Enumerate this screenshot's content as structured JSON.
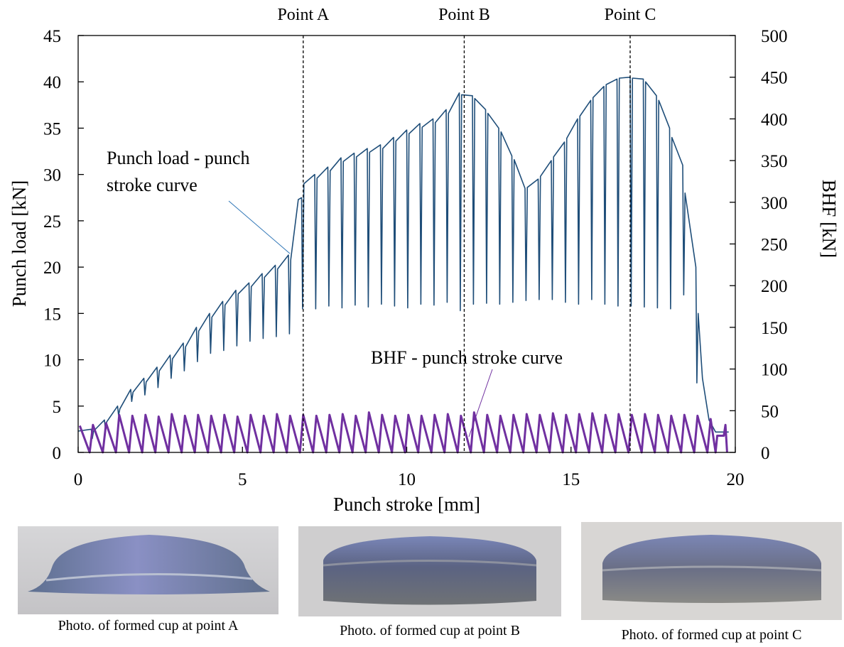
{
  "chart_data": {
    "type": "line",
    "xlabel": "Punch stroke [mm]",
    "ylabel": "Punch load [kN]",
    "y2label": "BHF [kN]",
    "xlim": [
      0,
      20
    ],
    "xticks": [
      0,
      5,
      10,
      15,
      20
    ],
    "ylim": [
      0,
      45
    ],
    "yticks": [
      0,
      5,
      10,
      15,
      20,
      25,
      30,
      35,
      40,
      45
    ],
    "y2lim": [
      0,
      500
    ],
    "y2ticks": [
      0,
      50,
      100,
      150,
      200,
      250,
      300,
      350,
      400,
      450,
      500
    ],
    "grid": false,
    "vlines": [
      {
        "x": 6.85,
        "label": "Point A"
      },
      {
        "x": 11.75,
        "label": "Point B"
      },
      {
        "x": 16.8,
        "label": "Point C"
      }
    ],
    "series": [
      {
        "name": "Punch load - punch stroke curve",
        "color": "#1f4e79",
        "axis": "y",
        "x": [
          0,
          0.4,
          0.43,
          0.47,
          0.8,
          0.83,
          0.87,
          1.2,
          1.23,
          1.27,
          1.6,
          1.63,
          1.67,
          2.0,
          2.03,
          2.07,
          2.4,
          2.43,
          2.47,
          2.8,
          2.83,
          2.87,
          3.2,
          3.23,
          3.27,
          3.6,
          3.63,
          3.67,
          4.0,
          4.03,
          4.07,
          4.4,
          4.43,
          4.47,
          4.8,
          4.83,
          4.87,
          5.2,
          5.23,
          5.27,
          5.6,
          5.63,
          5.67,
          6.0,
          6.03,
          6.07,
          6.4,
          6.43,
          6.47,
          6.7,
          6.8,
          6.83,
          6.87,
          7.2,
          7.23,
          7.27,
          7.6,
          7.63,
          7.67,
          8.0,
          8.03,
          8.07,
          8.4,
          8.43,
          8.47,
          8.8,
          8.83,
          8.87,
          9.2,
          9.23,
          9.27,
          9.6,
          9.63,
          9.67,
          10.0,
          10.03,
          10.07,
          10.4,
          10.43,
          10.47,
          10.8,
          10.83,
          10.87,
          11.2,
          11.23,
          11.27,
          11.6,
          11.63,
          11.67,
          12.0,
          12.03,
          12.07,
          12.4,
          12.43,
          12.47,
          12.8,
          12.83,
          12.87,
          13.2,
          13.23,
          13.27,
          13.6,
          13.63,
          13.67,
          14.0,
          14.03,
          14.07,
          14.4,
          14.43,
          14.47,
          14.8,
          14.83,
          14.87,
          15.2,
          15.23,
          15.27,
          15.6,
          15.63,
          15.67,
          16.0,
          16.03,
          16.07,
          16.4,
          16.43,
          16.47,
          16.8,
          16.83,
          16.87,
          17.2,
          17.23,
          17.27,
          17.6,
          17.63,
          17.67,
          18.0,
          18.03,
          18.07,
          18.4,
          18.43,
          18.47,
          18.8,
          18.83,
          18.87,
          19.0,
          19.2,
          19.4,
          19.8
        ],
        "values": [
          2.3,
          2.5,
          1.5,
          2.3,
          3.5,
          2.5,
          3.3,
          5,
          4,
          4.7,
          6.8,
          5.5,
          6.5,
          8,
          6.2,
          7.6,
          9.2,
          7,
          8.8,
          10.5,
          8,
          10.1,
          11.8,
          8.8,
          11.4,
          13.5,
          9.8,
          13.1,
          15,
          10.7,
          14.6,
          16.3,
          11,
          15.9,
          17.5,
          11.5,
          17.1,
          18.3,
          12,
          17.9,
          19.3,
          12.3,
          18.9,
          20.2,
          12.5,
          19.8,
          21.3,
          12.8,
          20.8,
          27.3,
          27.5,
          15.5,
          29,
          30,
          15.5,
          29.6,
          30.8,
          15.8,
          30.4,
          31.8,
          15.6,
          31.4,
          32.3,
          15.9,
          31.9,
          32.8,
          15.7,
          32.4,
          33.2,
          16,
          32.8,
          34,
          15.8,
          33.6,
          34.8,
          15.6,
          34.4,
          35.5,
          16,
          35.1,
          36,
          15.9,
          35.6,
          37,
          16.2,
          36.6,
          38.8,
          15.3,
          38.6,
          38.5,
          16,
          38.2,
          37,
          16.1,
          36.6,
          35,
          16,
          34.6,
          32,
          16.2,
          31.6,
          28.5,
          16.4,
          28.6,
          29.5,
          16.5,
          29.8,
          31.5,
          16.5,
          31.9,
          33.5,
          16.2,
          33.9,
          36,
          16,
          36.3,
          38,
          16.5,
          38.3,
          39.5,
          16,
          39.7,
          40.3,
          15.8,
          40.4,
          40.5,
          15.8,
          40.4,
          40.3,
          15.7,
          40,
          38.5,
          15.6,
          38,
          35,
          15.5,
          34,
          31,
          17,
          28,
          20,
          7.5,
          15,
          8,
          3.5,
          2.2,
          2.2
        ]
      },
      {
        "name": "BHF - punch stroke curve",
        "color": "#7030a0",
        "axis": "y2",
        "x": [
          0.05,
          0.35,
          0.45,
          0.75,
          0.85,
          1.15,
          1.25,
          1.55,
          1.65,
          1.95,
          2.05,
          2.35,
          2.45,
          2.75,
          2.85,
          3.15,
          3.25,
          3.55,
          3.65,
          3.95,
          4.05,
          4.35,
          4.45,
          4.75,
          4.85,
          5.15,
          5.25,
          5.55,
          5.65,
          5.95,
          6.05,
          6.35,
          6.45,
          6.75,
          6.85,
          7.15,
          7.25,
          7.55,
          7.65,
          7.95,
          8.05,
          8.35,
          8.45,
          8.75,
          8.85,
          9.15,
          9.25,
          9.55,
          9.65,
          9.95,
          10.05,
          10.35,
          10.45,
          10.75,
          10.85,
          11.15,
          11.25,
          11.55,
          11.65,
          11.95,
          12.05,
          12.35,
          12.45,
          12.75,
          12.85,
          13.15,
          13.25,
          13.55,
          13.65,
          13.95,
          14.05,
          14.35,
          14.45,
          14.75,
          14.85,
          15.15,
          15.25,
          15.55,
          15.65,
          15.95,
          16.05,
          16.35,
          16.45,
          16.75,
          16.85,
          17.15,
          17.25,
          17.55,
          17.65,
          17.95,
          18.05,
          18.35,
          18.45,
          18.75,
          18.85,
          19.15,
          19.25,
          19.4,
          19.45,
          19.65,
          19.7,
          19.75
        ],
        "values": [
          32,
          0,
          33,
          0,
          35,
          0,
          45,
          0,
          44,
          0,
          45,
          0,
          43,
          0,
          46,
          0,
          44,
          0,
          45,
          0,
          44,
          0,
          45,
          0,
          43,
          0,
          45,
          0,
          44,
          0,
          46,
          0,
          44,
          0,
          45,
          0,
          44,
          0,
          45,
          0,
          46,
          0,
          44,
          0,
          48,
          0,
          45,
          0,
          44,
          0,
          45,
          0,
          44,
          0,
          45,
          0,
          46,
          0,
          44,
          0,
          48,
          0,
          45,
          0,
          44,
          0,
          45,
          0,
          46,
          0,
          45,
          0,
          47,
          0,
          45,
          0,
          46,
          0,
          47,
          0,
          45,
          0,
          46,
          0,
          45,
          0,
          46,
          0,
          45,
          0,
          44,
          0,
          45,
          0,
          44,
          0,
          40,
          0,
          20,
          20,
          33,
          0
        ]
      }
    ]
  },
  "photos": [
    {
      "caption": "Photo. of formed cup at point A"
    },
    {
      "caption": "Photo. of formed cup at point B"
    },
    {
      "caption": "Photo. of formed cup at point C"
    }
  ]
}
